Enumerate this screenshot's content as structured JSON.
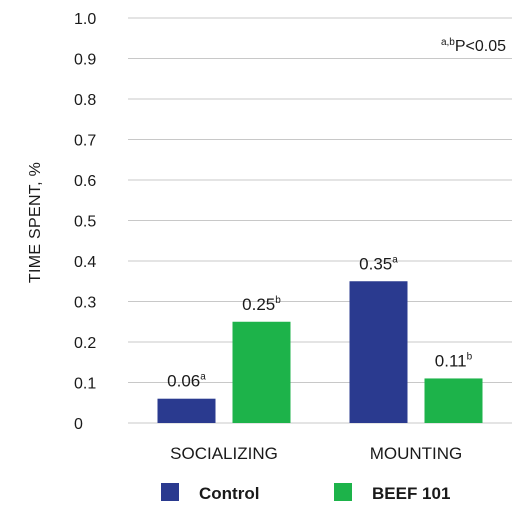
{
  "chart_data": {
    "type": "bar",
    "categories": [
      "SOCIALIZING",
      "MOUNTING"
    ],
    "series": [
      {
        "name": "Control",
        "color": "#2a3a8f",
        "values": [
          0.06,
          0.35
        ],
        "labels": [
          "0.06",
          "0.35"
        ],
        "superscripts": [
          "a",
          "a"
        ]
      },
      {
        "name": "BEEF 101",
        "color": "#1db34a",
        "values": [
          0.25,
          0.11
        ],
        "labels": [
          "0.25",
          "0.11"
        ],
        "superscripts": [
          "b",
          "b"
        ]
      }
    ],
    "ylabel": "TIME SPENT, %",
    "ylim": [
      0,
      1.0
    ],
    "yticks": [
      "0",
      "0.1",
      "0.2",
      "0.3",
      "0.4",
      "0.5",
      "0.6",
      "0.7",
      "0.8",
      "0.9",
      "1.0"
    ],
    "grid": true,
    "legend_position": "bottom",
    "annotation": {
      "superscript": "a,b",
      "text": "P<0.05"
    }
  }
}
